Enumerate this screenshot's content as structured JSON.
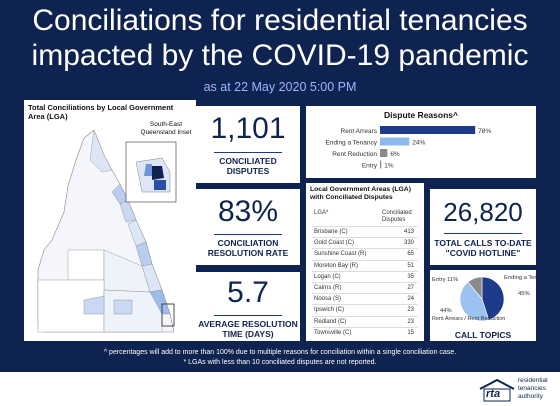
{
  "header": {
    "title_line1": "Conciliations for residential tenancies",
    "title_line2": "impacted by the COVID-19 pandemic",
    "subtitle": "as at 22 May 2020 5:00 PM"
  },
  "map": {
    "title_line1": "Total Conciliations by Local Government",
    "title_line2": "Area (LGA)",
    "inset_label_line1": "South-East",
    "inset_label_line2": "Queensland Inset"
  },
  "kpis": {
    "conciliated": {
      "value": "1,101",
      "label_line1": "CONCILIATED",
      "label_line2": "DISPUTES"
    },
    "resolution_rate": {
      "value": "83%",
      "label_line1": "CONCILIATION",
      "label_line2": "RESOLUTION RATE"
    },
    "avg_time": {
      "value": "5.7",
      "label_line1": "AVERAGE RESOLUTION",
      "label_line2": "TIME (DAYS)"
    },
    "calls": {
      "value": "26,820",
      "label_line1": "TOTAL CALLS TO-DATE",
      "label_line2": "\"COVID HOTLINE\""
    }
  },
  "lga_table": {
    "title_line1": "Local Government Areas (LGA)",
    "title_line2": "with Conciliated Disputes",
    "col1": "LGA*",
    "col2_line1": "Conciliated",
    "col2_line2": "Disputes"
  },
  "call_topics_label": "CALL TOPICS",
  "footnotes": {
    "line1": "^ percentages will add to more than 100% due to multiple reasons for conciliation within a single conciliation case.",
    "line2": "* LGAs with less than 10 conciliated disputes are not reported."
  },
  "logo": {
    "mark": "rta",
    "line1": "residential",
    "line2": "tenancies",
    "line3": "authority"
  },
  "colors": {
    "navy": "#0f2350",
    "bar_dark": "#1e3a8a",
    "bar_light": "#90b8f0",
    "bar_gray": "#8a8a8a"
  },
  "chart_data": [
    {
      "type": "bar",
      "title": "Dispute Reasons^",
      "categories": [
        "Rent Arrears",
        "Ending a Tenancy",
        "Rent Reduction",
        "Entry"
      ],
      "values": [
        78,
        24,
        6,
        1
      ],
      "value_labels": [
        "78%",
        "24%",
        "6%",
        "1%"
      ],
      "xlim": [
        0,
        100
      ],
      "orientation": "horizontal"
    },
    {
      "type": "table",
      "columns": [
        "LGA*",
        "Conciliated Disputes"
      ],
      "rows": [
        [
          "Brisbane (C)",
          "413"
        ],
        [
          "Gold Coast (C)",
          "330"
        ],
        [
          "Sunshine Coast (R)",
          "65"
        ],
        [
          "Moreton Bay (R)",
          "51"
        ],
        [
          "Logan (C)",
          "35"
        ],
        [
          "Cairns (R)",
          "27"
        ],
        [
          "Noosa (S)",
          "24"
        ],
        [
          "Ipswich (C)",
          "23"
        ],
        [
          "Redland (C)",
          "23"
        ],
        [
          "Townsville (C)",
          "15"
        ]
      ]
    },
    {
      "type": "pie",
      "title": "CALL TOPICS",
      "categories": [
        "Ending a Tenancy",
        "Rent Arrears / Rent Reduction",
        "Entry"
      ],
      "values": [
        45,
        44,
        11
      ],
      "value_labels": [
        "45%",
        "44%",
        "11%"
      ],
      "colors": [
        "#1e3a8a",
        "#9cc3f0",
        "#8a8a8a"
      ]
    }
  ]
}
